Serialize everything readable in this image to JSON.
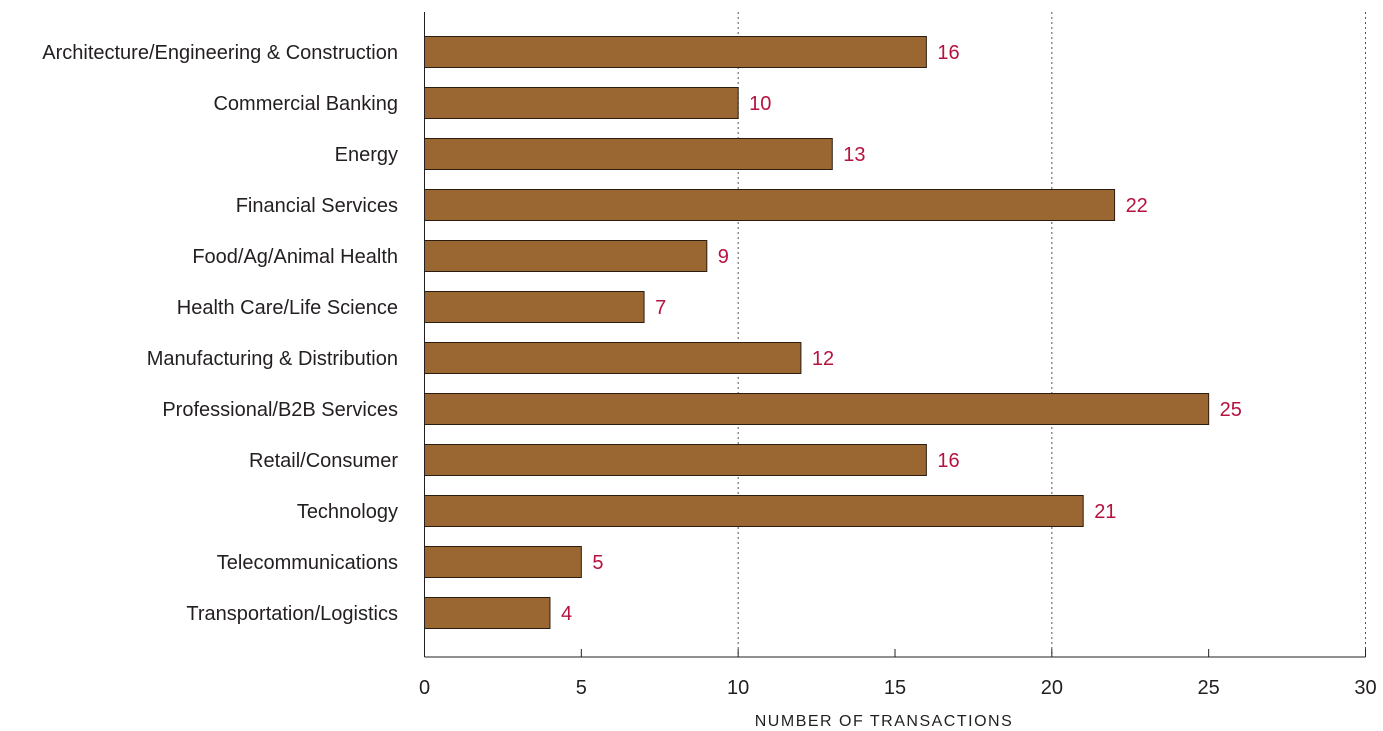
{
  "chart_data": {
    "type": "bar",
    "orientation": "horizontal",
    "categories": [
      "Architecture/Engineering & Construction",
      "Commercial Banking",
      "Energy",
      "Financial Services",
      "Food/Ag/Animal Health",
      "Health Care/Life Science",
      "Manufacturing & Distribution",
      "Professional/B2B Services",
      "Retail/Consumer",
      "Technology",
      "Telecommunications",
      "Transportation/Logistics"
    ],
    "values": [
      16,
      10,
      13,
      22,
      9,
      7,
      12,
      25,
      16,
      21,
      5,
      4
    ],
    "data_labels": [
      "16",
      "10",
      "13",
      "22",
      "9",
      "7",
      "12",
      "25",
      "16",
      "21",
      "5",
      "4"
    ],
    "xlabel": "NUMBER OF TRANSACTIONS",
    "ylabel": "",
    "xlim": [
      0,
      30
    ],
    "xticks": [
      0,
      5,
      10,
      15,
      20,
      25,
      30
    ],
    "xtick_labels": [
      "0",
      "5",
      "10",
      "15",
      "20",
      "25",
      "30"
    ],
    "grid": "vertical dotted at 10, 20, 30",
    "legend": "none",
    "colors": {
      "bar_fill": "#9a6732",
      "bar_stroke": "#2b1d10",
      "value_label": "#b5123e",
      "axis": "#231f20",
      "grid": "#555555"
    }
  }
}
